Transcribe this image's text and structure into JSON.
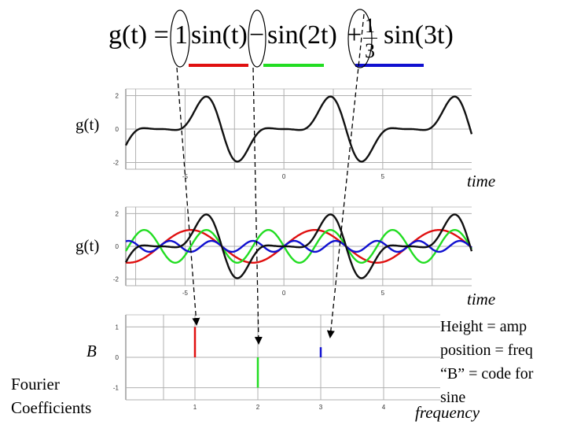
{
  "equation": {
    "lhs": "g(t) =",
    "term1_coef": "1",
    "term1": "sin(t)",
    "op2": "−",
    "term2": "sin(2t)",
    "op3": "+",
    "frac_num": "1",
    "frac_den": "3",
    "term3": "sin(3t)"
  },
  "colors": {
    "term1": "#e01010",
    "term2": "#22dd22",
    "term3": "#1010d0",
    "combined": "#111111",
    "grid": "#b0b0b0",
    "axis": "#6a6a6a"
  },
  "labels": {
    "gt_top": "g(t)",
    "time_top": "time",
    "gt_mid": "g(t)",
    "time_mid": "time",
    "b_label": "B",
    "fourier": "Fourier",
    "coefficients": "Coefficients",
    "frequency": "frequency"
  },
  "notes": {
    "line1": "Height = amp",
    "line2": "position = freq",
    "line3": "“B” = code for",
    "line4": "sine"
  },
  "chart_data": [
    {
      "type": "line",
      "series": [
        {
          "function": "sin(t) - sin(2t) + (1/3) sin(3t)"
        }
      ],
      "xlim": [
        -8,
        9.5
      ],
      "ylim": [
        -2.4,
        2.4
      ],
      "x_ticks": [
        "-5",
        "0",
        "5"
      ],
      "y_ticks": [
        "2",
        "0",
        "-2"
      ]
    },
    {
      "type": "line",
      "series": [
        {
          "function": "sin(t)"
        },
        {
          "function": "-sin(2t)"
        },
        {
          "function": "(1/3) sin(3t)"
        },
        {
          "function": "sin(t) - sin(2t) + (1/3) sin(3t)"
        }
      ],
      "xlim": [
        -8,
        9.5
      ],
      "ylim": [
        -2.4,
        2.4
      ],
      "x_ticks": [
        "-5",
        "0",
        "5"
      ],
      "y_ticks": [
        "2",
        "0",
        "-2"
      ]
    },
    {
      "type": "bar",
      "x": [
        1,
        2,
        3
      ],
      "values": [
        1,
        -1,
        0.333
      ],
      "xlim": [
        -0.1,
        4.9
      ],
      "ylim": [
        -1.4,
        1.4
      ],
      "x_ticks": [
        "1",
        "2",
        "3",
        "4"
      ],
      "y_ticks": [
        "1",
        "0",
        "-1"
      ]
    }
  ]
}
